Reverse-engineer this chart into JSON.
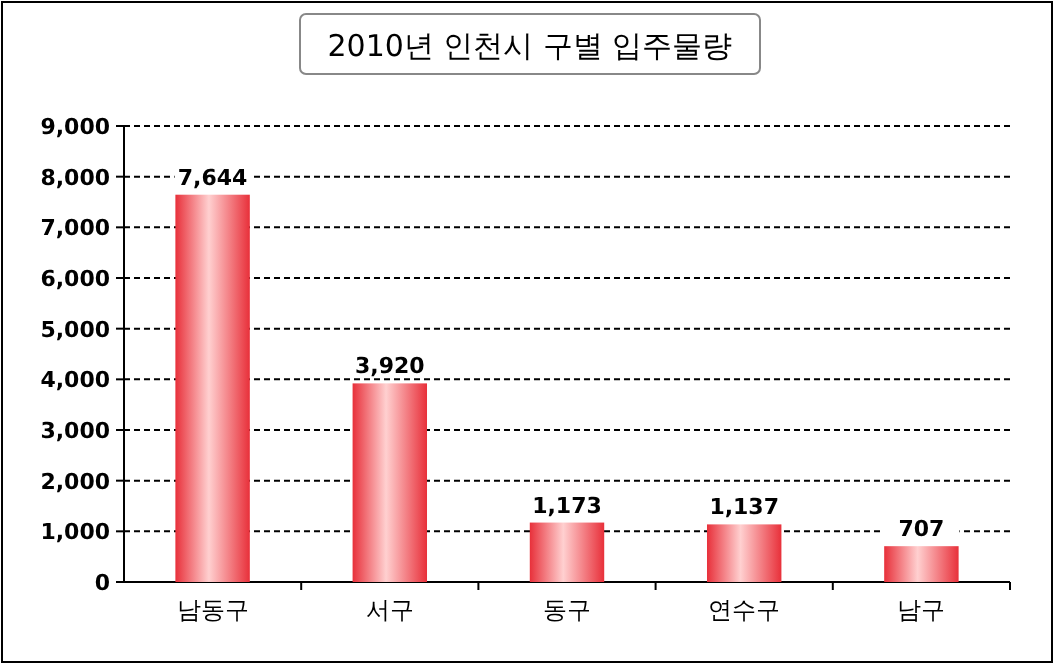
{
  "chart_data": {
    "type": "bar",
    "title": "2010년 인천시 구별 입주물량",
    "categories": [
      "남동구",
      "서구",
      "동구",
      "연수구",
      "남구"
    ],
    "values": [
      7644,
      3920,
      1173,
      1137,
      707
    ],
    "color": "#e8303a",
    "ylim": [
      0,
      9000
    ],
    "yticks": [
      0,
      {
        "value": 1000,
        "label": "1,000"
      },
      {
        "value": 2000,
        "label": "2,000"
      },
      {
        "value": 3000,
        "label": "3,000"
      },
      {
        "value": 4000,
        "label": "4,000"
      },
      {
        "value": 5000,
        "label": "5,000"
      },
      {
        "value": 6000,
        "label": "6,000"
      },
      {
        "value": 7000,
        "label": "7,000"
      },
      {
        "value": 8000,
        "label": "8,000"
      },
      {
        "value": 9000,
        "label": "9,000"
      }
    ],
    "grid": "y",
    "value_labels": [
      "7,644",
      "3,920",
      "1,173",
      "1,137",
      "707"
    ]
  }
}
